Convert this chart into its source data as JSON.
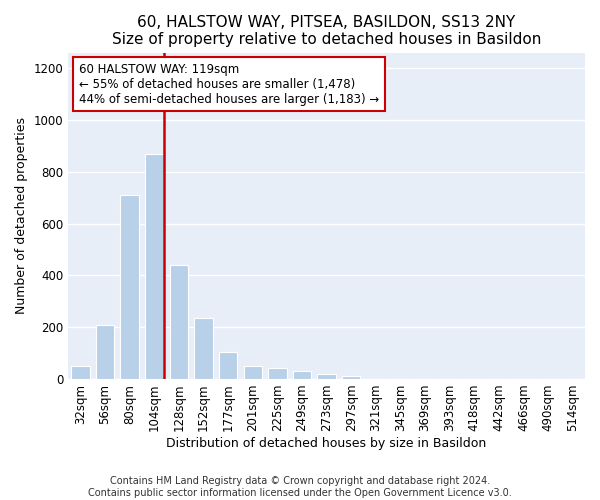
{
  "title": "60, HALSTOW WAY, PITSEA, BASILDON, SS13 2NY",
  "subtitle": "Size of property relative to detached houses in Basildon",
  "xlabel": "Distribution of detached houses by size in Basildon",
  "ylabel": "Number of detached properties",
  "bar_labels": [
    "32sqm",
    "56sqm",
    "80sqm",
    "104sqm",
    "128sqm",
    "152sqm",
    "177sqm",
    "201sqm",
    "225sqm",
    "249sqm",
    "273sqm",
    "297sqm",
    "321sqm",
    "345sqm",
    "369sqm",
    "393sqm",
    "418sqm",
    "442sqm",
    "466sqm",
    "490sqm",
    "514sqm"
  ],
  "bar_values": [
    50,
    210,
    710,
    870,
    440,
    235,
    105,
    50,
    42,
    30,
    20,
    10,
    0,
    0,
    0,
    0,
    0,
    0,
    0,
    0,
    0
  ],
  "bar_color": "#b8d0e8",
  "bar_edgecolor": "#ffffff",
  "vline_color": "#cc0000",
  "vline_bin_index": 3,
  "annotation_text": "60 HALSTOW WAY: 119sqm\n← 55% of detached houses are smaller (1,478)\n44% of semi-detached houses are larger (1,183) →",
  "annotation_boxcolor": "white",
  "annotation_edgecolor": "#cc0000",
  "ylim": [
    0,
    1260
  ],
  "yticks": [
    0,
    200,
    400,
    600,
    800,
    1000,
    1200
  ],
  "footer_line1": "Contains HM Land Registry data © Crown copyright and database right 2024.",
  "footer_line2": "Contains public sector information licensed under the Open Government Licence v3.0.",
  "background_color": "#e8eef8",
  "title_fontsize": 11,
  "axis_fontsize": 9,
  "tick_fontsize": 8.5,
  "footer_fontsize": 7
}
